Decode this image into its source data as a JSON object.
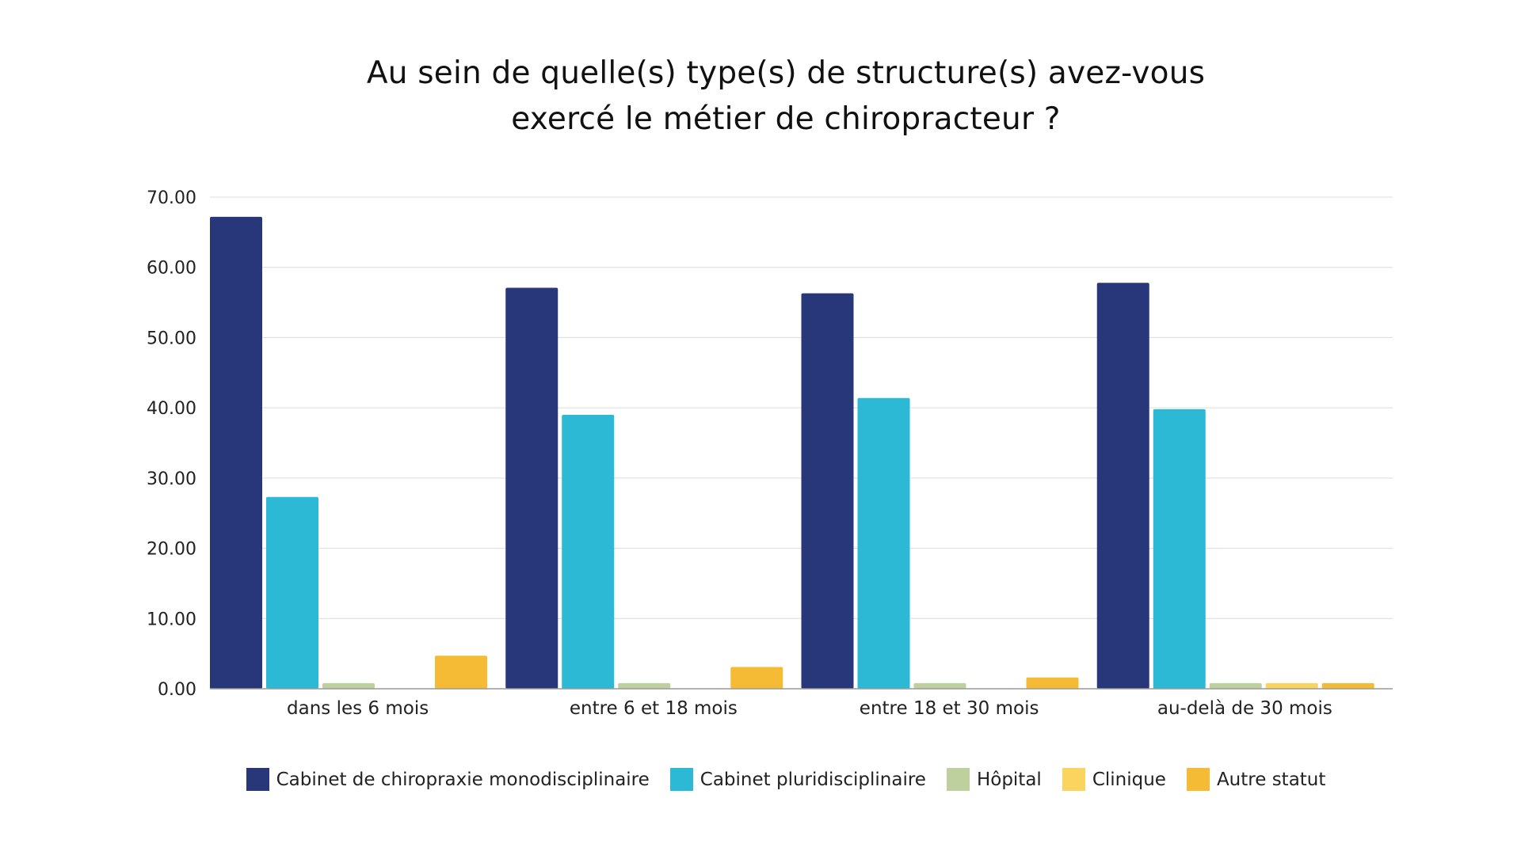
{
  "chart_data": {
    "type": "bar",
    "title_lines": [
      "Au sein de quelle(s) type(s) de structure(s) avez-vous",
      "exercé le métier de chiropracteur ?"
    ],
    "categories": [
      "dans les 6 mois",
      "entre 6 et 18 mois",
      "entre 18 et 30 mois",
      "au-delà de 30 mois"
    ],
    "series": [
      {
        "name": "Cabinet de chiropraxie monodisciplinaire",
        "color": "#283779",
        "values": [
          67.2,
          57.1,
          56.3,
          57.8
        ]
      },
      {
        "name": "Cabinet pluridisciplinaire",
        "color": "#2bb9d6",
        "values": [
          27.3,
          39.0,
          41.4,
          39.8
        ]
      },
      {
        "name": "Hôpital",
        "color": "#bdd09d",
        "values": [
          0.8,
          0.8,
          0.8,
          0.8
        ]
      },
      {
        "name": "Clinique",
        "color": "#fbd460",
        "values": [
          0,
          0,
          0,
          0.8
        ]
      },
      {
        "name": "Autre statut",
        "color": "#f5bb35",
        "values": [
          4.7,
          3.1,
          1.6,
          0.8
        ]
      }
    ],
    "yticks": [
      "0.00",
      "10.00",
      "20.00",
      "30.00",
      "40.00",
      "50.00",
      "60.00",
      "70.00"
    ],
    "ylim": [
      0,
      70
    ],
    "grid": true,
    "legend_position": "bottom"
  }
}
